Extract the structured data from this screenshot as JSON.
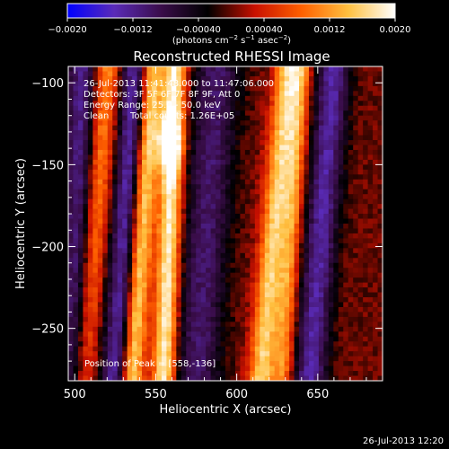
{
  "chart_data": {
    "type": "heatmap",
    "title": "Reconstructed RHESSI Image",
    "xlabel": "Heliocentric X (arcsec)",
    "ylabel": "Heliocentric Y (arcsec)",
    "xlim": [
      496,
      690
    ],
    "ylim": [
      -282,
      -90
    ],
    "x_ticks": [
      500,
      550,
      600,
      650
    ],
    "y_ticks": [
      -100,
      -150,
      -200,
      -250
    ],
    "colorbar": {
      "range": [
        -0.002,
        0.002
      ],
      "ticks": [
        -0.002,
        -0.0012,
        -0.0004,
        0.0004,
        0.0012,
        0.002
      ],
      "tick_labels": [
        "−0.0020",
        "−0.0012",
        "−0.00040",
        "0.00040",
        "0.0012",
        "0.0020"
      ],
      "unit_text": "(photons cm",
      "unit_sup1": "−2",
      "unit_mid": " s",
      "unit_sup2": "−1",
      "unit_mid2": " asec",
      "unit_sup3": "−2",
      "unit_end": ")",
      "colors": [
        "#0000ff",
        "#5a2bb8",
        "#3a0d4a",
        "#000000",
        "#c81000",
        "#ff6000",
        "#ffc040",
        "#ffffff"
      ]
    },
    "annotations": [
      "26-Jul-2013 11:41:48.000 to 11:47:06.000",
      "Detectors: 3F 5F 6F 7F 8F 9F, Att 0",
      "Energy Range: 25.0 - 50.0 keV",
      "Clean",
      "Total counts: 1.26E+05"
    ],
    "peak_label": "Position of Peak = [558,-136]",
    "peak": [
      558,
      -136
    ],
    "ridges": [
      {
        "x_at_top": 548,
        "x_at_bottom": 535,
        "amplitude": 0.0018,
        "width": 7
      },
      {
        "x_at_top": 562,
        "x_at_bottom": 555,
        "amplitude": 0.0019,
        "width": 7
      },
      {
        "x_at_top": 632,
        "x_at_bottom": 615,
        "amplitude": 0.0016,
        "width": 8
      },
      {
        "x_at_top": 520,
        "x_at_bottom": 505,
        "amplitude": 0.0012,
        "width": 8
      },
      {
        "x_at_top": 640,
        "x_at_bottom": 628,
        "amplitude": 0.0011,
        "width": 6
      }
    ],
    "troughs": [
      {
        "x_at_top": 505,
        "x_at_bottom": 500,
        "amplitude": -0.0012,
        "width": 10
      },
      {
        "x_at_top": 538,
        "x_at_bottom": 525,
        "amplitude": -0.0014,
        "width": 9
      },
      {
        "x_at_top": 588,
        "x_at_bottom": 575,
        "amplitude": -0.001,
        "width": 14
      },
      {
        "x_at_top": 660,
        "x_at_bottom": 645,
        "amplitude": -0.0013,
        "width": 10
      }
    ]
  },
  "timestamp": "26-Jul-2013 12:20"
}
